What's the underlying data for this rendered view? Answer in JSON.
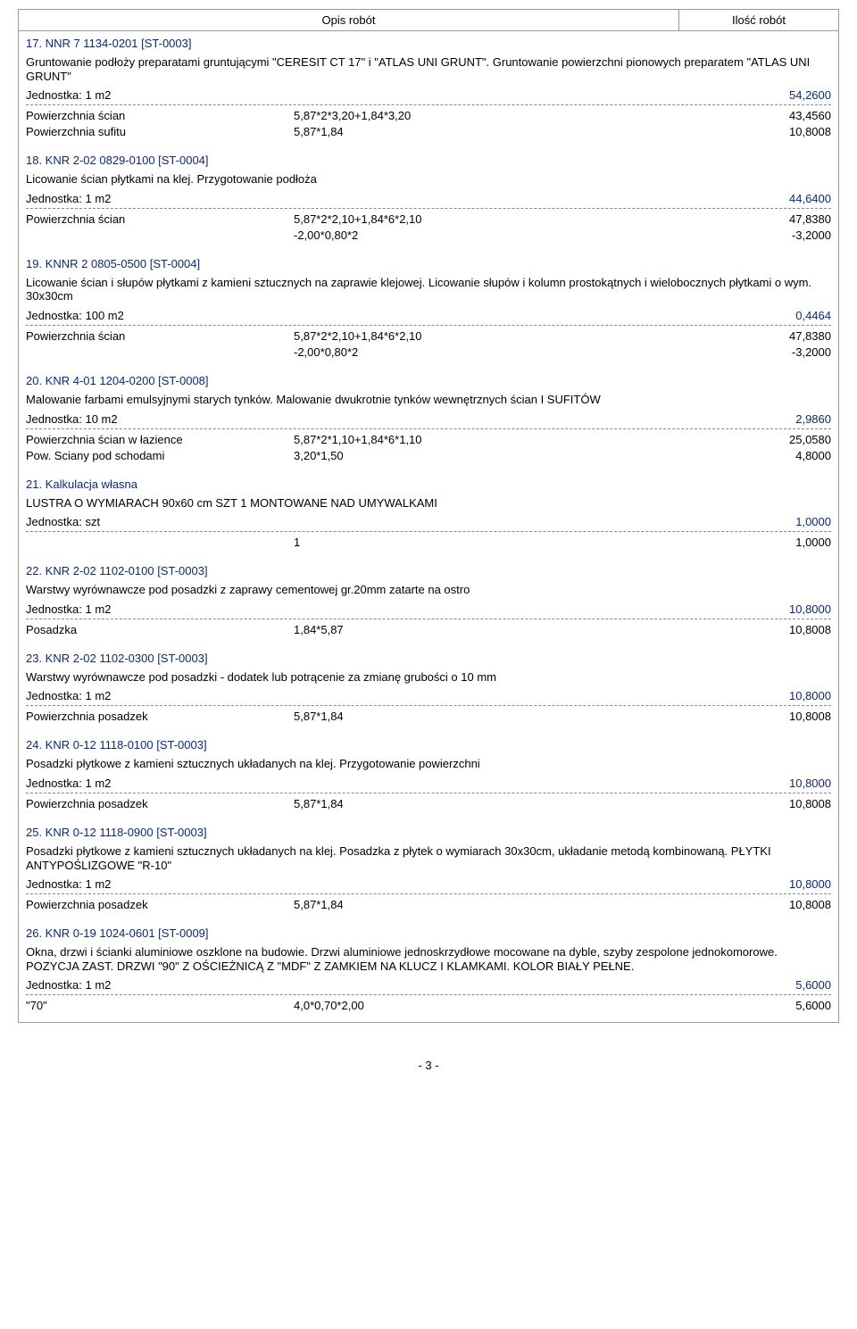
{
  "header": {
    "c1": "Opis robót",
    "c2": "Ilość robót"
  },
  "items": [
    {
      "title": "17. NNR 7  1134-0201   [ST-0003]",
      "desc": "Gruntowanie podłoży preparatami gruntującymi \"CERESIT CT 17\" i \"ATLAS UNI GRUNT\". Gruntowanie powierzchni pionowych preparatem \"ATLAS UNI GRUNT\"",
      "unit": "Jednostka: 1 m2",
      "total": "54,2600",
      "rows": [
        {
          "a": "Powierzchnia ścian",
          "b": "5,87*2*3,20+1,84*3,20",
          "c": "43,4560"
        },
        {
          "a": "Powierzchnia sufitu",
          "b": "5,87*1,84",
          "c": "10,8008"
        }
      ]
    },
    {
      "title": "18. KNR 2-02  0829-0100   [ST-0004]",
      "desc": "Licowanie ścian płytkami na klej. Przygotowanie podłoża",
      "unit": "Jednostka: 1 m2",
      "total": "44,6400",
      "rows": [
        {
          "a": "Powierzchnia ścian",
          "b": "5,87*2*2,10+1,84*6*2,10",
          "c": "47,8380"
        },
        {
          "a": "",
          "b": "-2,00*0,80*2",
          "c": "-3,2000"
        }
      ]
    },
    {
      "title": "19. KNNR 2  0805-0500   [ST-0004]",
      "desc": "Licowanie ścian i słupów płytkami z kamieni sztucznych na zaprawie klejowej. Licowanie słupów i kolumn prostokątnych i wielobocznych płytkami o wym. 30x30cm",
      "unit": "Jednostka: 100 m2",
      "total": "0,4464",
      "rows": [
        {
          "a": "Powierzchnia ścian",
          "b": "5,87*2*2,10+1,84*6*2,10",
          "c": "47,8380"
        },
        {
          "a": "",
          "b": "-2,00*0,80*2",
          "c": "-3,2000"
        }
      ]
    },
    {
      "title": "20. KNR 4-01  1204-0200   [ST-0008]",
      "desc": "Malowanie farbami emulsyjnymi starych tynków. Malowanie dwukrotnie tynków wewnętrznych ścian I SUFITÓW",
      "unit": "Jednostka: 10 m2",
      "total": "2,9860",
      "rows": [
        {
          "a": "Powierzchnia ścian  w łazience",
          "b": "5,87*2*1,10+1,84*6*1,10",
          "c": "25,0580"
        },
        {
          "a": "Pow. Sciany pod schodami",
          "b": "3,20*1,50",
          "c": "4,8000"
        }
      ]
    },
    {
      "title": "21. Kalkulacja własna",
      "desc": "LUSTRA O WYMIARACH 90x60 cm SZT 1 MONTOWANE NAD UMYWALKAMI",
      "unit": "Jednostka: szt",
      "total": "1,0000",
      "rows": [
        {
          "a": "",
          "b": "1",
          "c": "1,0000"
        }
      ]
    },
    {
      "title": "22. KNR 2-02  1102-0100   [ST-0003]",
      "desc": "Warstwy wyrównawcze pod posadzki z zaprawy cementowej gr.20mm zatarte na ostro",
      "unit": "Jednostka: 1 m2",
      "total": "10,8000",
      "rows": [
        {
          "a": "Posadzka",
          "b": "1,84*5,87",
          "c": "10,8008"
        }
      ]
    },
    {
      "title": "23. KNR 2-02  1102-0300   [ST-0003]",
      "desc": "Warstwy wyrównawcze pod posadzki - dodatek lub potrącenie za zmianę grubości o 10 mm",
      "unit": "Jednostka: 1 m2",
      "total": "10,8000",
      "rows": [
        {
          "a": "Powierzchnia posadzek",
          "b": "5,87*1,84",
          "c": "10,8008"
        }
      ]
    },
    {
      "title": "24. KNR 0-12  1118-0100   [ST-0003]",
      "desc": "Posadzki płytkowe z kamieni sztucznych układanych na klej. Przygotowanie powierzchni",
      "unit": "Jednostka: 1 m2",
      "total": "10,8000",
      "rows": [
        {
          "a": "Powierzchnia posadzek",
          "b": "5,87*1,84",
          "c": "10,8008"
        }
      ]
    },
    {
      "title": "25. KNR 0-12  1118-0900   [ST-0003]",
      "desc": "Posadzki płytkowe z kamieni sztucznych układanych na klej. Posadzka z płytek o wymiarach 30x30cm, układanie metodą kombinowaną.  PŁYTKI  ANTYPOŚLIZGOWE \"R-10\"",
      "unit": "Jednostka: 1 m2",
      "total": "10,8000",
      "rows": [
        {
          "a": "Powierzchnia posadzek",
          "b": "5,87*1,84",
          "c": "10,8008"
        }
      ]
    },
    {
      "title": "26. KNR 0-19  1024-0601   [ST-0009]",
      "desc": "Okna, drzwi i ścianki aluminiowe oszklone na budowie. Drzwi aluminiowe jednoskrzydłowe mocowane na dyble, szyby zespolone jednokomorowe. POZYCJA ZAST. DRZWI  \"90\" Z OŚCIEŻNICĄ  Z \"MDF\"  Z ZAMKIEM NA KLUCZ I KLAMKAMI. KOLOR BIAŁY PEŁNE.",
      "unit": "Jednostka: 1 m2",
      "total": "5,6000",
      "rows": [
        {
          "a": "\"70\"",
          "b": "4,0*0,70*2,00",
          "c": "5,6000"
        }
      ]
    }
  ],
  "footer": "- 3 -"
}
